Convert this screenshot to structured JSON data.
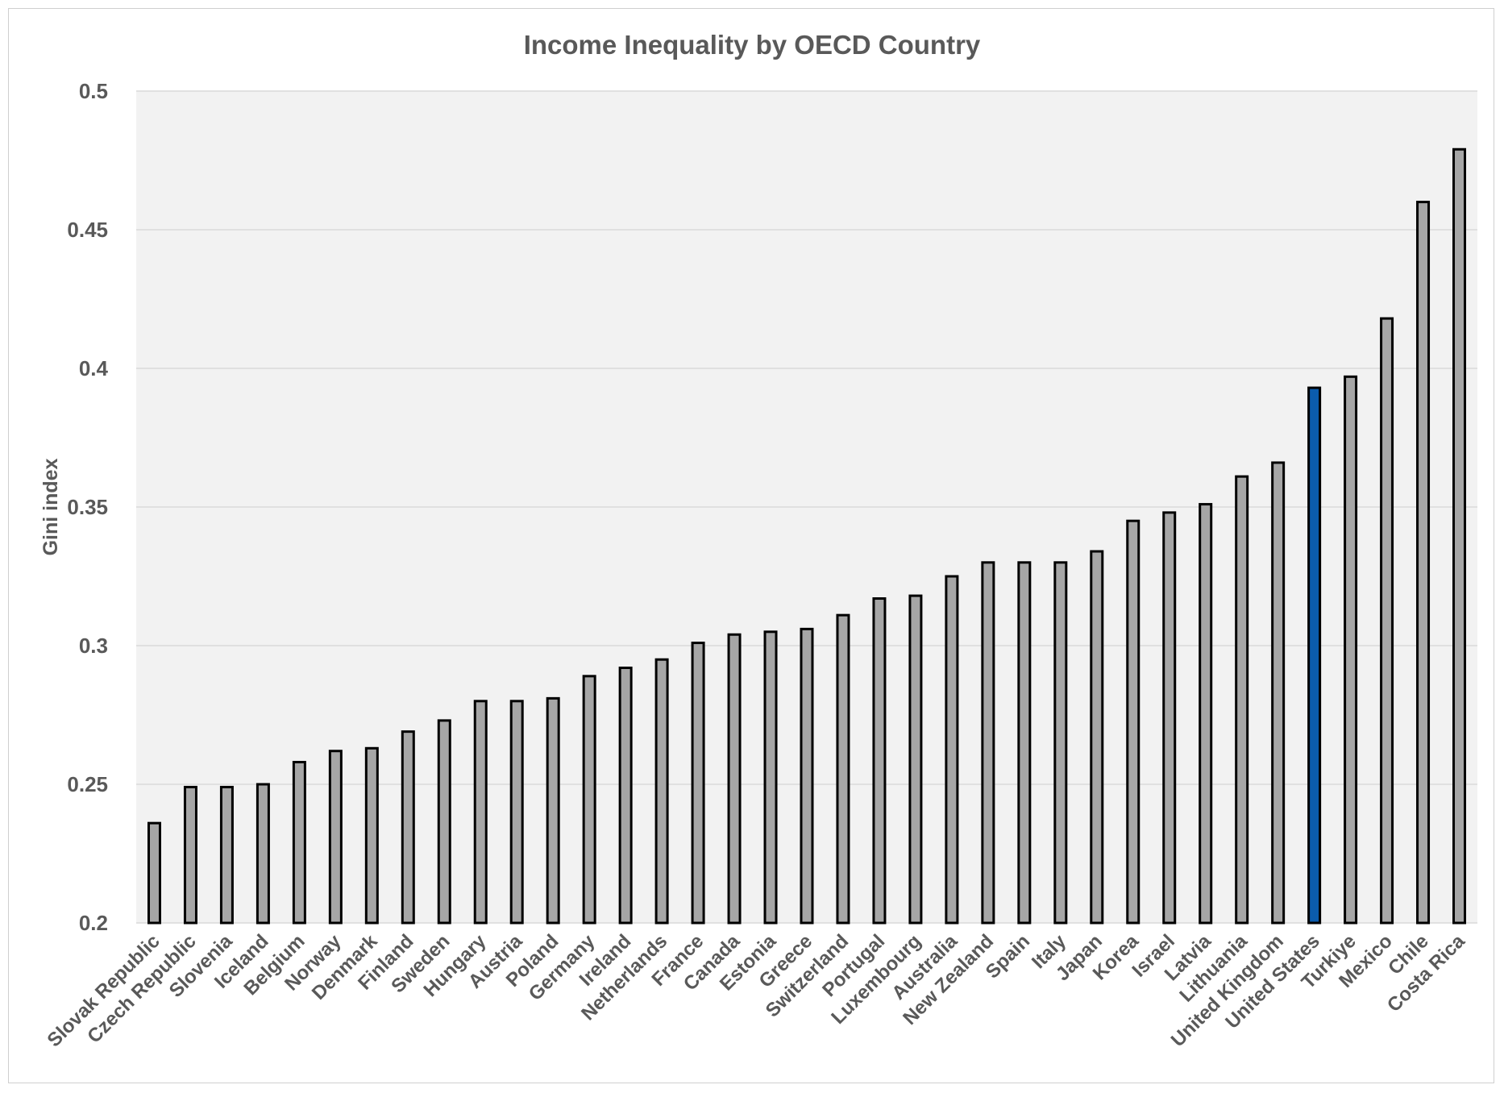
{
  "chart_data": {
    "type": "bar",
    "title": "Income Inequality by OECD Country",
    "xlabel": "",
    "ylabel": "Gini index",
    "ylim": [
      0.2,
      0.5
    ],
    "yticks": [
      "0.2",
      "0.25",
      "0.3",
      "0.35",
      "0.4",
      "0.45",
      "0.5"
    ],
    "grid": true,
    "legend": "none",
    "colors": {
      "default": "#a6a6a6",
      "highlight": "#0b5cad",
      "plot_bg": "#f2f2f2"
    },
    "highlight": "United States",
    "categories": [
      "Slovak Republic",
      "Czech Republic",
      "Slovenia",
      "Iceland",
      "Belgium",
      "Norway",
      "Denmark",
      "Finland",
      "Sweden",
      "Hungary",
      "Austria",
      "Poland",
      "Germany",
      "Ireland",
      "Netherlands",
      "France",
      "Canada",
      "Estonia",
      "Greece",
      "Switzerland",
      "Portugal",
      "Luxembourg",
      "Australia",
      "New Zealand",
      "Spain",
      "Italy",
      "Japan",
      "Korea",
      "Israel",
      "Latvia",
      "Lithuania",
      "United Kingdom",
      "United States",
      "Turkiye",
      "Mexico",
      "Chile",
      "Costa Rica"
    ],
    "values": [
      0.236,
      0.249,
      0.249,
      0.25,
      0.258,
      0.262,
      0.263,
      0.269,
      0.273,
      0.28,
      0.28,
      0.281,
      0.289,
      0.292,
      0.295,
      0.301,
      0.304,
      0.305,
      0.306,
      0.311,
      0.317,
      0.318,
      0.325,
      0.33,
      0.33,
      0.33,
      0.334,
      0.345,
      0.348,
      0.351,
      0.361,
      0.366,
      0.393,
      0.397,
      0.418,
      0.46,
      0.479
    ]
  }
}
